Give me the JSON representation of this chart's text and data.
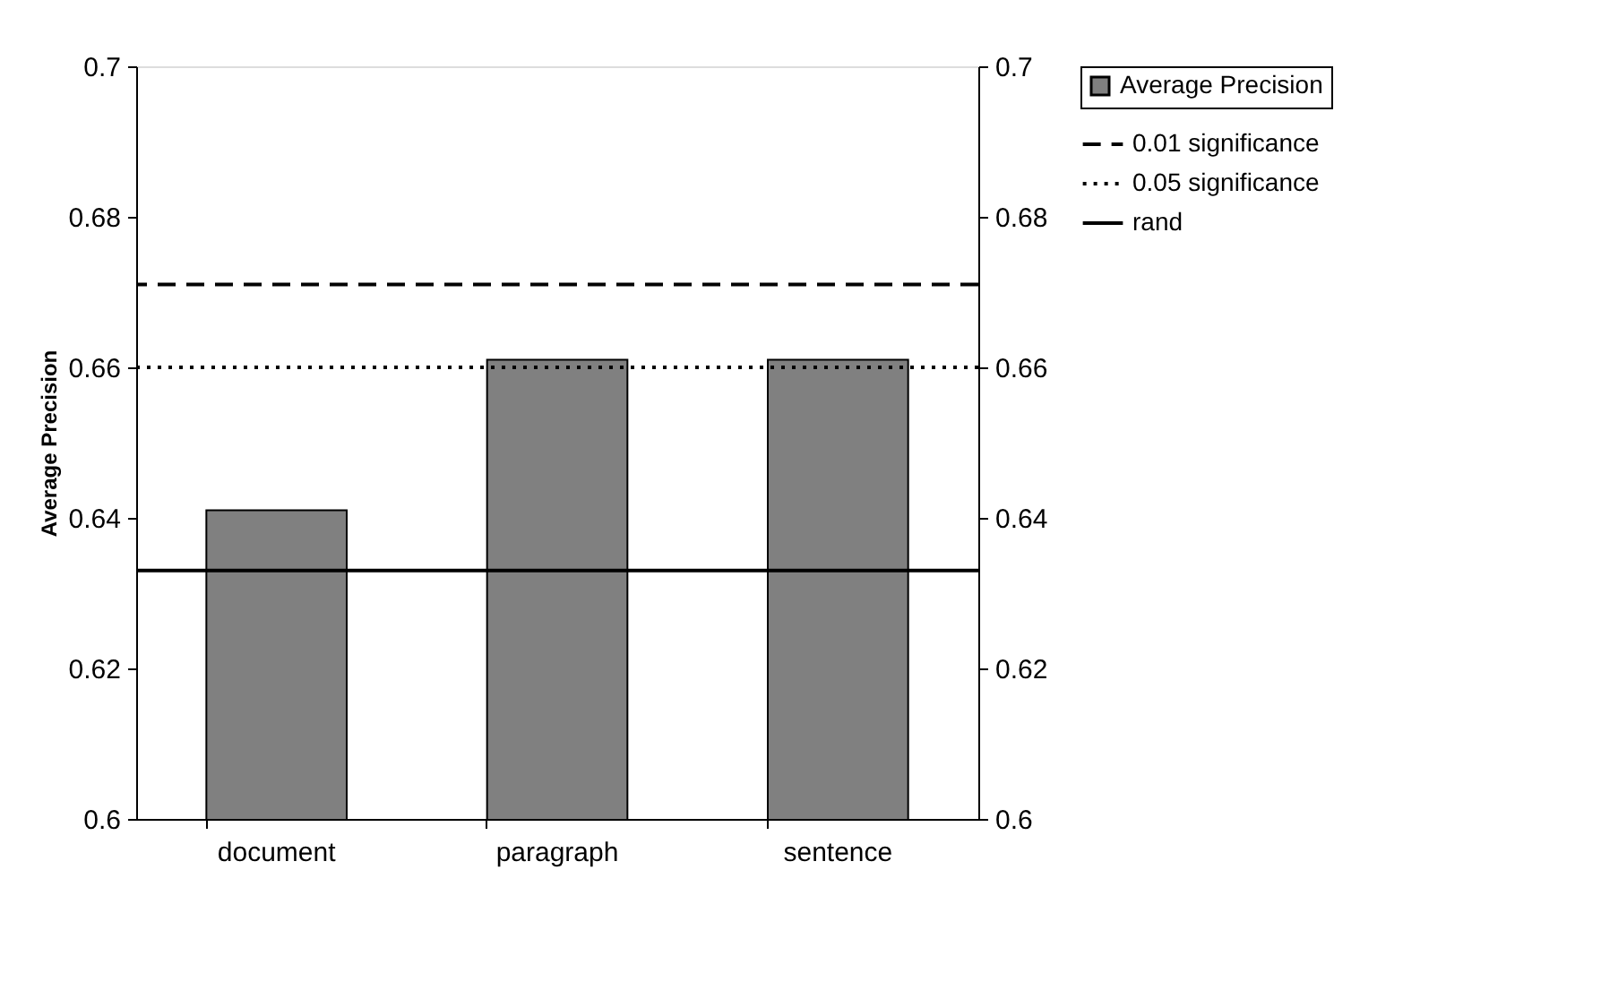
{
  "chart_data": {
    "type": "bar",
    "ylabel": "Average Precision",
    "categories": [
      "document",
      "paragraph",
      "sentence"
    ],
    "series": [
      {
        "name": "Average Precision",
        "color": "#808080",
        "values": [
          0.641,
          0.661,
          0.661
        ]
      }
    ],
    "ylim": [
      0.6,
      0.7
    ],
    "yticks": [
      0.6,
      0.62,
      0.64,
      0.66,
      0.68,
      0.7
    ],
    "y2lim": [
      0.6,
      0.7
    ],
    "y2ticks": [
      0.6,
      0.62,
      0.64,
      0.66,
      0.68,
      0.7
    ],
    "ref_lines": [
      {
        "axis": "y",
        "value": 0.671,
        "label": "0.01 significance",
        "color": "#000000",
        "line_style": "dashed"
      },
      {
        "axis": "y",
        "value": 0.66,
        "label": "0.05 significance",
        "color": "#000000",
        "line_style": "dotted"
      },
      {
        "axis": "y",
        "value": 0.633,
        "label": "rand",
        "color": "#000000",
        "line_style": "solid"
      }
    ],
    "grid": false,
    "legend": "right"
  }
}
